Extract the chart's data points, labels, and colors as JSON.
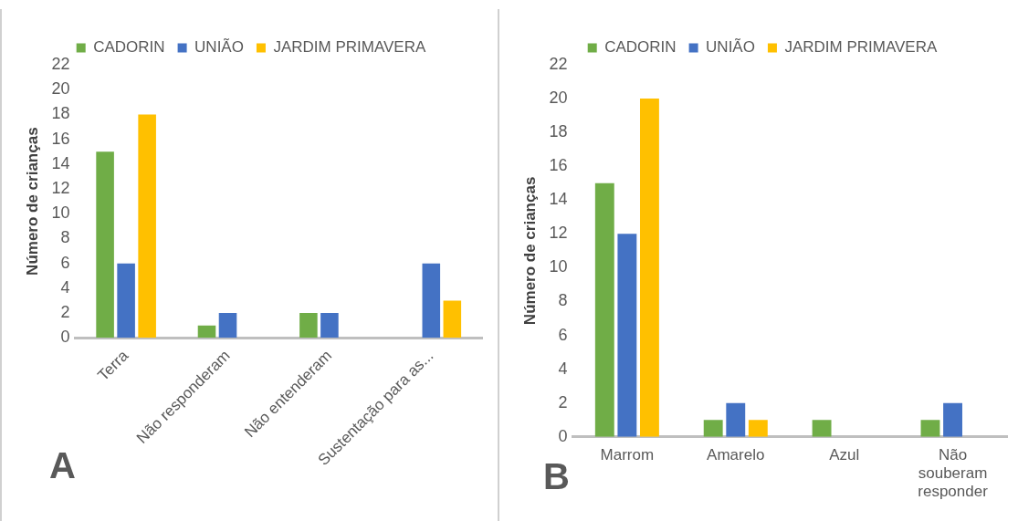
{
  "chart_data": [
    {
      "type": "bar",
      "ylabel": "Número de crianças",
      "categories": [
        "Terra",
        "Não responderam",
        "Não entenderam",
        "Sustentação para as..."
      ],
      "series": [
        {
          "name": "CADORIN",
          "color": "#70ad47",
          "values": [
            15,
            1,
            2,
            0
          ]
        },
        {
          "name": "UNIÃO",
          "color": "#4472c4",
          "values": [
            6,
            2,
            2,
            6
          ]
        },
        {
          "name": "JARDIM PRIMAVERA",
          "color": "#ffc000",
          "values": [
            18,
            0,
            0,
            3
          ]
        }
      ],
      "ylim": [
        0,
        22
      ],
      "yticks": [
        0,
        2,
        4,
        6,
        8,
        10,
        12,
        14,
        16,
        18,
        20,
        22
      ],
      "grid": false,
      "legend": "top",
      "annotations": [
        "A"
      ]
    },
    {
      "type": "bar",
      "ylabel": "Número de crianças",
      "categories": [
        "Marrom",
        "Amarelo",
        "Azul",
        "Não souberam responder"
      ],
      "series": [
        {
          "name": "CADORIN",
          "color": "#70ad47",
          "values": [
            15,
            1,
            1,
            1
          ]
        },
        {
          "name": "UNIÃO",
          "color": "#4472c4",
          "values": [
            12,
            2,
            0,
            2
          ]
        },
        {
          "name": "JARDIM PRIMAVERA",
          "color": "#ffc000",
          "values": [
            20,
            1,
            0,
            0
          ]
        }
      ],
      "ylim": [
        0,
        22
      ],
      "yticks": [
        0,
        2,
        4,
        6,
        8,
        10,
        12,
        14,
        16,
        18,
        20,
        22
      ],
      "grid": false,
      "legend": "top",
      "annotations": [
        "B"
      ]
    }
  ]
}
